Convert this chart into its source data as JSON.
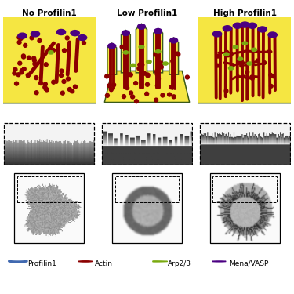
{
  "title_no": "No Profilin1",
  "title_low": "Low Profilin1",
  "title_high": "High Profilin1",
  "bg_color": "#ffffff",
  "cell_fill": "#f5e642",
  "cell_edge": "#3a5a1a",
  "actin_color": "#8b0000",
  "profilin_color": "#4169b0",
  "mena_color": "#4b0082",
  "arp_color": "#7aaa10",
  "legend_labels": [
    "Profilin1",
    "Actin",
    "Arp2/3",
    "Mena/VASP"
  ],
  "fig_width": 3.75,
  "fig_height": 3.75,
  "dpi": 100
}
